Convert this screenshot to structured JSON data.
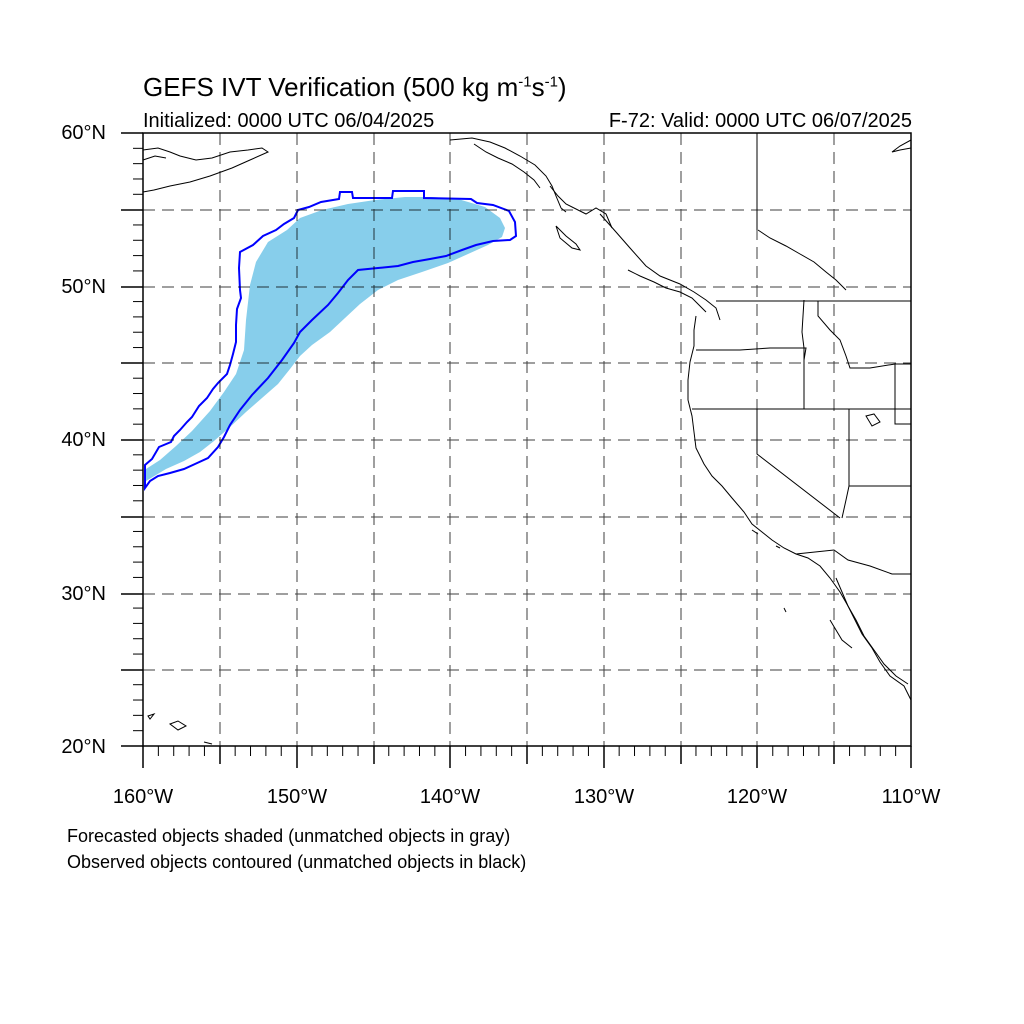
{
  "title": {
    "main": "GEFS IVT Verification (500 kg m",
    "sup1": "-1",
    "mid": "s",
    "sup2": "-1",
    "end": ")"
  },
  "subtitle_left": "Initialized: 0000 UTC 06/04/2025",
  "subtitle_right": "F-72: Valid: 0000 UTC 06/07/2025",
  "y_ticks": [
    {
      "label": "60°N",
      "value": 60
    },
    {
      "label": "50°N",
      "value": 50
    },
    {
      "label": "40°N",
      "value": 40
    },
    {
      "label": "30°N",
      "value": 30
    },
    {
      "label": "20°N",
      "value": 20
    }
  ],
  "x_ticks": [
    {
      "label": "160°W",
      "value": -160
    },
    {
      "label": "150°W",
      "value": -150
    },
    {
      "label": "140°W",
      "value": -140
    },
    {
      "label": "130°W",
      "value": -130
    },
    {
      "label": "120°W",
      "value": -120
    },
    {
      "label": "110°W",
      "value": -110
    }
  ],
  "extent": {
    "lon": [
      -160,
      -110
    ],
    "lat": [
      20,
      60
    ]
  },
  "notes": [
    "Forecasted objects shaded (unmatched objects in gray)",
    "Observed objects contoured (unmatched objects in black)"
  ],
  "colors": {
    "forecast_fill": "#87ceeb",
    "observed_contour": "#0000ff",
    "coastline": "#000000",
    "grid": "#000000"
  }
}
